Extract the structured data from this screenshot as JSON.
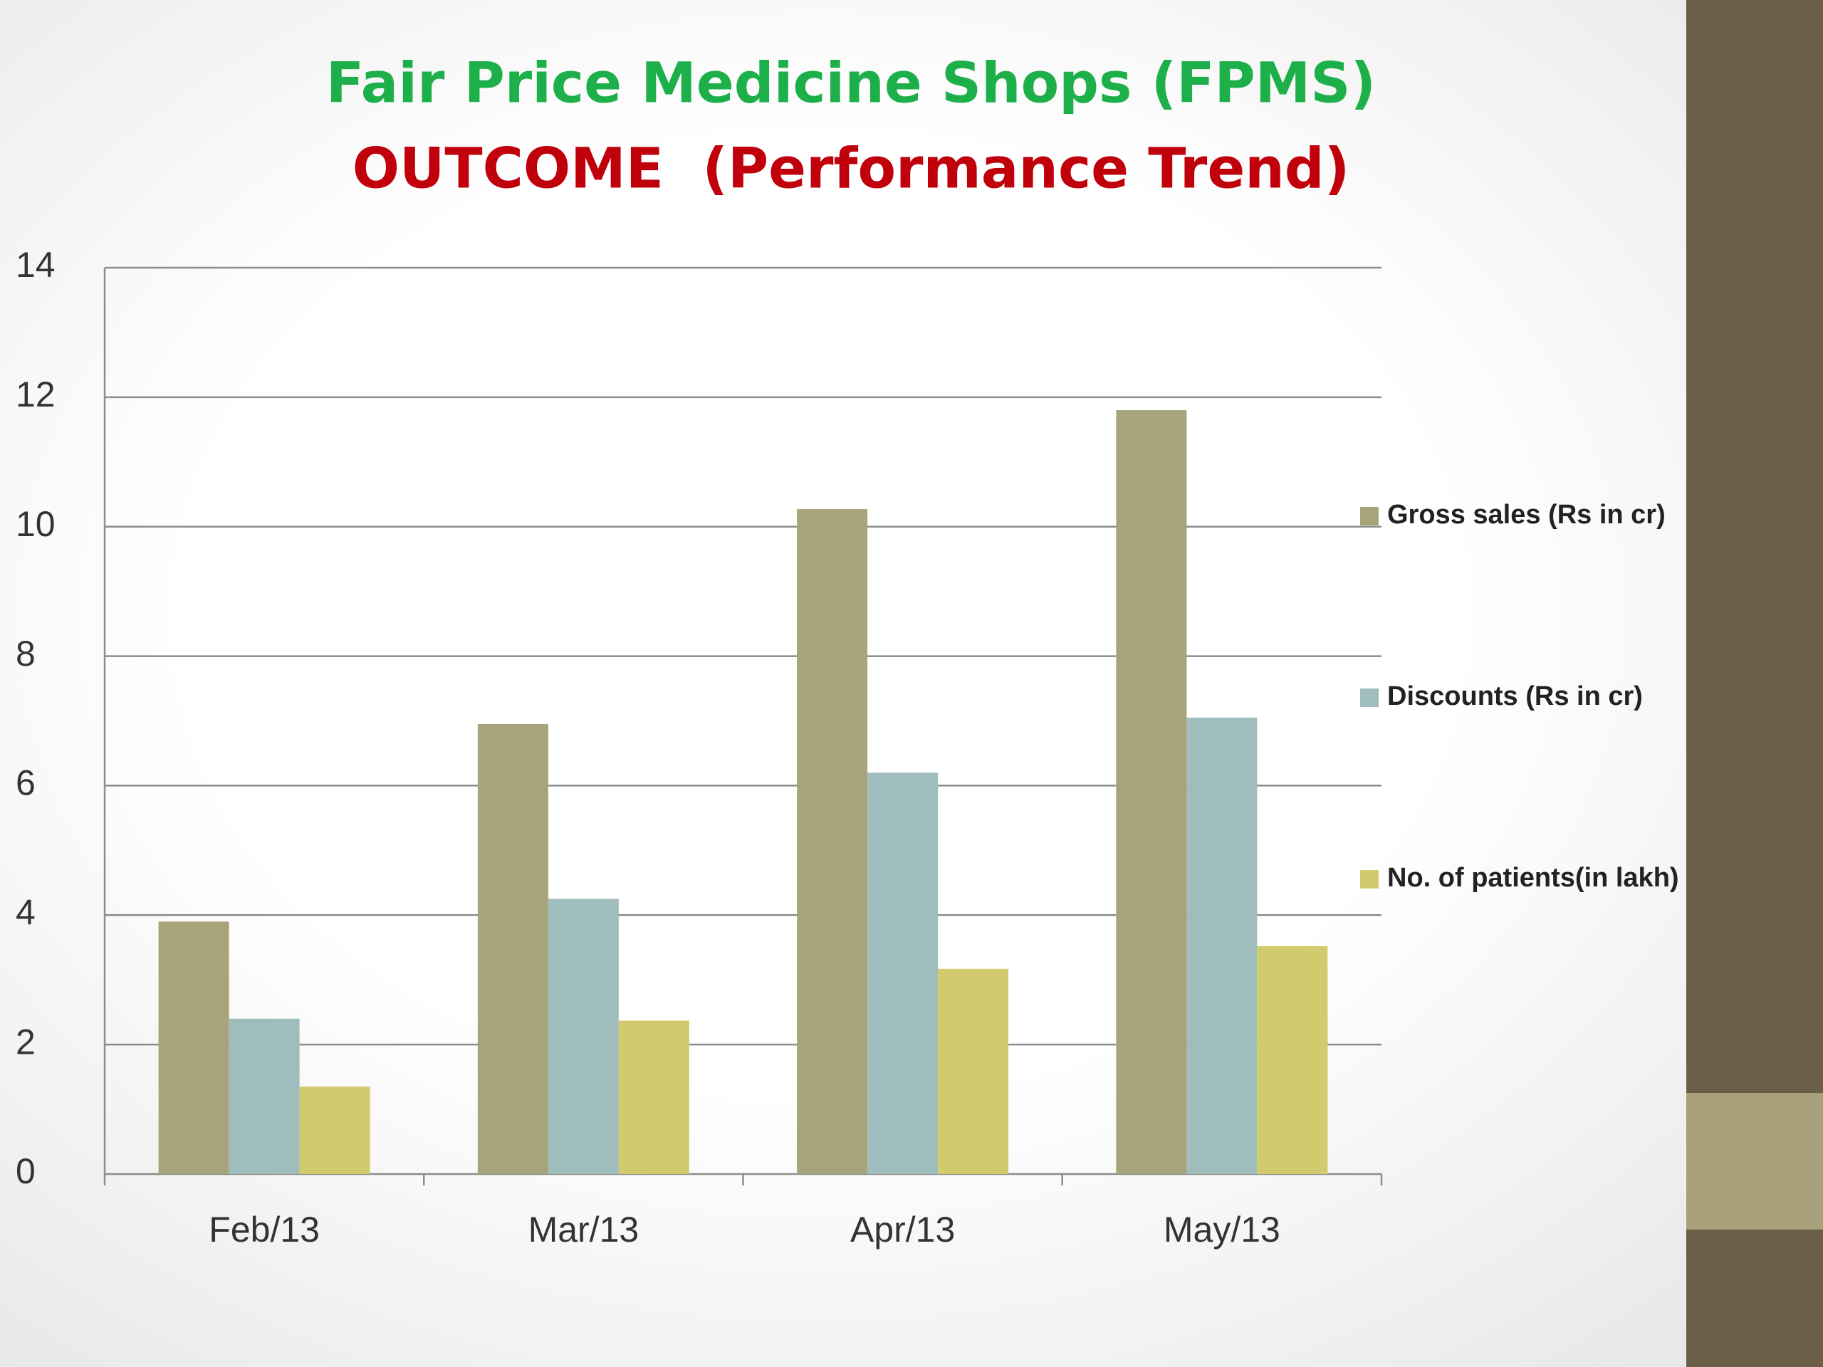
{
  "chart_data": {
    "type": "bar",
    "title": "Fair Price Medicine Shops (FPMS)",
    "subtitle": "OUTCOME  (Performance Trend)",
    "categories": [
      "Feb/13",
      "Mar/13",
      "Apr/13",
      "May/13"
    ],
    "series": [
      {
        "name": "Gross sales (Rs in cr)",
        "color": "#a8a47a",
        "values": [
          3.9,
          6.95,
          10.27,
          11.8
        ]
      },
      {
        "name": "Discounts (Rs in cr)",
        "color": "#9fbdbd",
        "values": [
          2.4,
          4.25,
          6.2,
          7.05
        ]
      },
      {
        "name": "No. of patients(in lakh)",
        "color": "#d1cb6e",
        "values": [
          1.35,
          2.37,
          3.17,
          3.52
        ]
      }
    ],
    "ylim": [
      0,
      14
    ],
    "yticks": [
      0,
      2,
      4,
      6,
      8,
      10,
      12,
      14
    ],
    "grid": true,
    "legend": "right"
  }
}
